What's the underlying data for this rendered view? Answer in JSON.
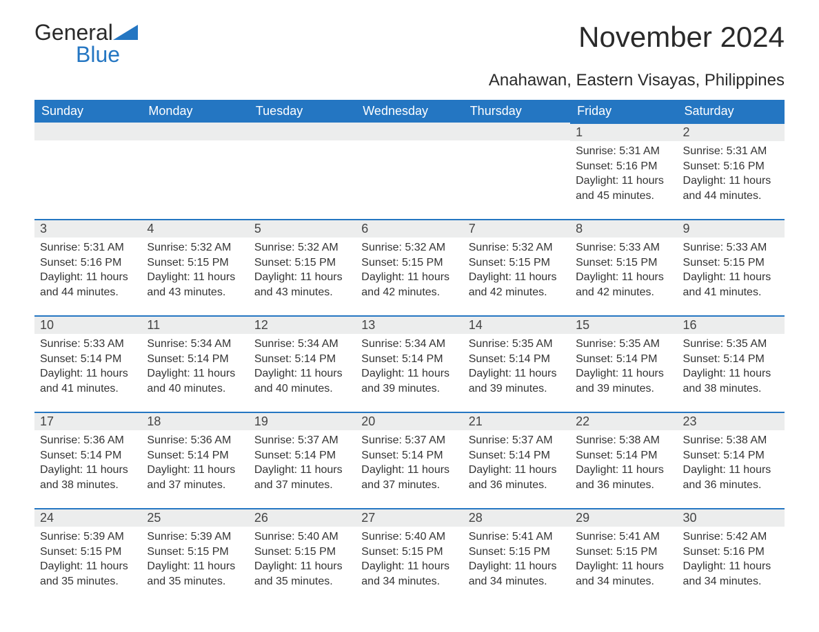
{
  "brand": {
    "part1": "General",
    "part2": "Blue"
  },
  "title": "November 2024",
  "subtitle": "Anahawan, Eastern Visayas, Philippines",
  "weekdays": [
    "Sunday",
    "Monday",
    "Tuesday",
    "Wednesday",
    "Thursday",
    "Friday",
    "Saturday"
  ],
  "colors": {
    "header_bg": "#2476c2",
    "header_text": "#ffffff",
    "daynum_bg": "#eceded",
    "daynum_border": "#2476c2",
    "text": "#333333",
    "background": "#ffffff"
  },
  "layout": {
    "columns": 7,
    "rows": 5,
    "first_weekday_index": 5
  },
  "labels": {
    "sunrise": "Sunrise:",
    "sunset": "Sunset:",
    "daylight": "Daylight:"
  },
  "days": [
    {
      "n": 1,
      "sunrise": "5:31 AM",
      "sunset": "5:16 PM",
      "daylight": "11 hours and 45 minutes."
    },
    {
      "n": 2,
      "sunrise": "5:31 AM",
      "sunset": "5:16 PM",
      "daylight": "11 hours and 44 minutes."
    },
    {
      "n": 3,
      "sunrise": "5:31 AM",
      "sunset": "5:16 PM",
      "daylight": "11 hours and 44 minutes."
    },
    {
      "n": 4,
      "sunrise": "5:32 AM",
      "sunset": "5:15 PM",
      "daylight": "11 hours and 43 minutes."
    },
    {
      "n": 5,
      "sunrise": "5:32 AM",
      "sunset": "5:15 PM",
      "daylight": "11 hours and 43 minutes."
    },
    {
      "n": 6,
      "sunrise": "5:32 AM",
      "sunset": "5:15 PM",
      "daylight": "11 hours and 42 minutes."
    },
    {
      "n": 7,
      "sunrise": "5:32 AM",
      "sunset": "5:15 PM",
      "daylight": "11 hours and 42 minutes."
    },
    {
      "n": 8,
      "sunrise": "5:33 AM",
      "sunset": "5:15 PM",
      "daylight": "11 hours and 42 minutes."
    },
    {
      "n": 9,
      "sunrise": "5:33 AM",
      "sunset": "5:15 PM",
      "daylight": "11 hours and 41 minutes."
    },
    {
      "n": 10,
      "sunrise": "5:33 AM",
      "sunset": "5:14 PM",
      "daylight": "11 hours and 41 minutes."
    },
    {
      "n": 11,
      "sunrise": "5:34 AM",
      "sunset": "5:14 PM",
      "daylight": "11 hours and 40 minutes."
    },
    {
      "n": 12,
      "sunrise": "5:34 AM",
      "sunset": "5:14 PM",
      "daylight": "11 hours and 40 minutes."
    },
    {
      "n": 13,
      "sunrise": "5:34 AM",
      "sunset": "5:14 PM",
      "daylight": "11 hours and 39 minutes."
    },
    {
      "n": 14,
      "sunrise": "5:35 AM",
      "sunset": "5:14 PM",
      "daylight": "11 hours and 39 minutes."
    },
    {
      "n": 15,
      "sunrise": "5:35 AM",
      "sunset": "5:14 PM",
      "daylight": "11 hours and 39 minutes."
    },
    {
      "n": 16,
      "sunrise": "5:35 AM",
      "sunset": "5:14 PM",
      "daylight": "11 hours and 38 minutes."
    },
    {
      "n": 17,
      "sunrise": "5:36 AM",
      "sunset": "5:14 PM",
      "daylight": "11 hours and 38 minutes."
    },
    {
      "n": 18,
      "sunrise": "5:36 AM",
      "sunset": "5:14 PM",
      "daylight": "11 hours and 37 minutes."
    },
    {
      "n": 19,
      "sunrise": "5:37 AM",
      "sunset": "5:14 PM",
      "daylight": "11 hours and 37 minutes."
    },
    {
      "n": 20,
      "sunrise": "5:37 AM",
      "sunset": "5:14 PM",
      "daylight": "11 hours and 37 minutes."
    },
    {
      "n": 21,
      "sunrise": "5:37 AM",
      "sunset": "5:14 PM",
      "daylight": "11 hours and 36 minutes."
    },
    {
      "n": 22,
      "sunrise": "5:38 AM",
      "sunset": "5:14 PM",
      "daylight": "11 hours and 36 minutes."
    },
    {
      "n": 23,
      "sunrise": "5:38 AM",
      "sunset": "5:14 PM",
      "daylight": "11 hours and 36 minutes."
    },
    {
      "n": 24,
      "sunrise": "5:39 AM",
      "sunset": "5:15 PM",
      "daylight": "11 hours and 35 minutes."
    },
    {
      "n": 25,
      "sunrise": "5:39 AM",
      "sunset": "5:15 PM",
      "daylight": "11 hours and 35 minutes."
    },
    {
      "n": 26,
      "sunrise": "5:40 AM",
      "sunset": "5:15 PM",
      "daylight": "11 hours and 35 minutes."
    },
    {
      "n": 27,
      "sunrise": "5:40 AM",
      "sunset": "5:15 PM",
      "daylight": "11 hours and 34 minutes."
    },
    {
      "n": 28,
      "sunrise": "5:41 AM",
      "sunset": "5:15 PM",
      "daylight": "11 hours and 34 minutes."
    },
    {
      "n": 29,
      "sunrise": "5:41 AM",
      "sunset": "5:15 PM",
      "daylight": "11 hours and 34 minutes."
    },
    {
      "n": 30,
      "sunrise": "5:42 AM",
      "sunset": "5:16 PM",
      "daylight": "11 hours and 34 minutes."
    }
  ]
}
